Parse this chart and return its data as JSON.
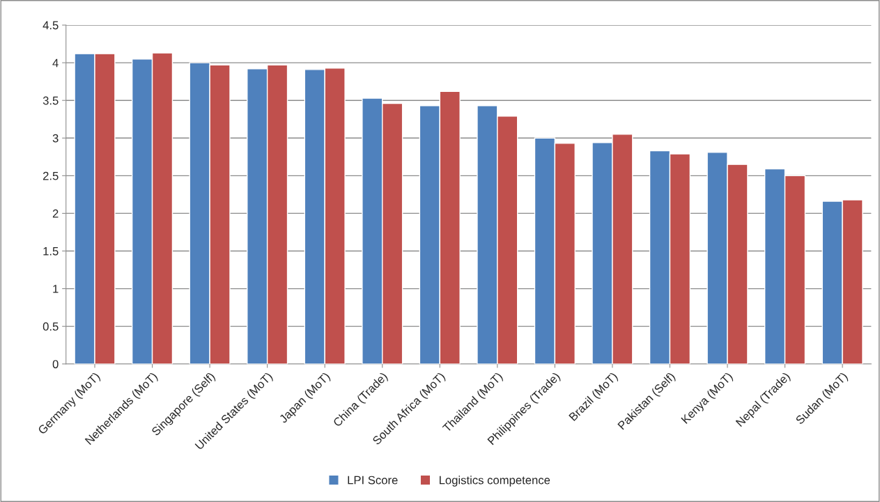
{
  "chart_data": {
    "type": "bar",
    "categories": [
      "Germany (MoT)",
      "Netherlands (MoT)",
      "Singapore (Self)",
      "United States (MoT)",
      "Japan (MoT)",
      "China (Trade)",
      "South Africa (MoT)",
      "Thailand (MoT)",
      "Philippines (Trade)",
      "Brazil (MoT)",
      "Pakistan (Self)",
      "Kenya (MoT)",
      "Nepal (Trade)",
      "Sudan (MoT)"
    ],
    "series": [
      {
        "name": "LPI Score",
        "color": "#4f81bd",
        "values": [
          4.12,
          4.05,
          4.0,
          3.92,
          3.91,
          3.53,
          3.43,
          3.43,
          3.0,
          2.94,
          2.83,
          2.81,
          2.59,
          2.16
        ]
      },
      {
        "name": "Logistics competence",
        "color": "#c0504d",
        "values": [
          4.12,
          4.13,
          3.97,
          3.97,
          3.93,
          3.46,
          3.62,
          3.29,
          2.93,
          3.05,
          2.79,
          2.65,
          2.5,
          2.18
        ]
      }
    ],
    "ylim": [
      0,
      4.5
    ],
    "yticks": [
      0,
      0.5,
      1,
      1.5,
      2,
      2.5,
      3,
      3.5,
      4,
      4.5
    ],
    "grid": "y",
    "legend": "bottom"
  }
}
